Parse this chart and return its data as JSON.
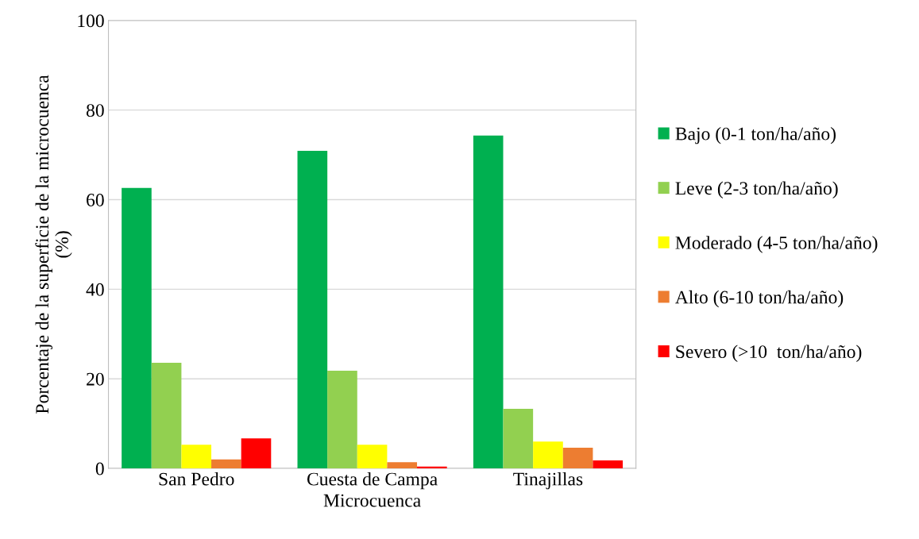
{
  "chart_data": {
    "type": "bar",
    "xlabel": "Microcuenca",
    "ylabel": "Porcentaje de la superficie de la microcuenca\n(%)",
    "categories": [
      "San Pedro",
      "Cuesta de Campa",
      "Tinajillas"
    ],
    "series": [
      {
        "name": "Bajo (0-1 ton/ha/año)",
        "color": "#00b050",
        "values": [
          62.6,
          70.9,
          74.3
        ]
      },
      {
        "name": "Leve (2-3 ton/ha/año)",
        "color": "#92d050",
        "values": [
          23.6,
          21.8,
          13.3
        ]
      },
      {
        "name": "Moderado (4-5 ton/ha/año)",
        "color": "#ffff00",
        "values": [
          5.3,
          5.3,
          6.0
        ]
      },
      {
        "name": "Alto (6-10 ton/ha/año)",
        "color": "#ed7d31",
        "values": [
          2.0,
          1.4,
          4.6
        ]
      },
      {
        "name": "Severo (>10  ton/ha/año)",
        "color": "#ff0000",
        "values": [
          6.7,
          0.4,
          1.8
        ]
      }
    ],
    "ylim": [
      0,
      100
    ],
    "yticks": [
      0,
      20,
      40,
      60,
      80,
      100
    ],
    "grid": "y",
    "legend": "right"
  }
}
